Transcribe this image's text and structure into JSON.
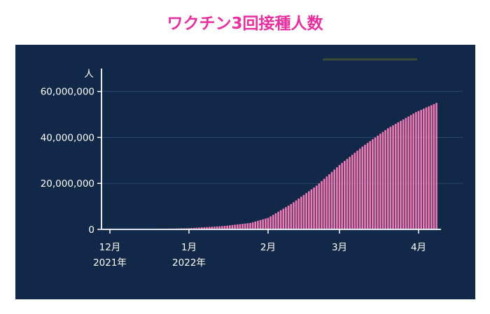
{
  "title": "ワクチン3回接種人数",
  "colors": {
    "title": "#e8309f",
    "panel": "#122848",
    "bar": "#f27ab4",
    "axis": "#ffffff",
    "grid": "#2c4568"
  },
  "chart_data": {
    "type": "bar",
    "title": "ワクチン3回接種人数",
    "ylabel": "人",
    "ylim": [
      0,
      66000000
    ],
    "yticks": [
      0,
      20000000,
      40000000,
      60000000
    ],
    "ytick_labels": [
      "0",
      "20,000,000",
      "40,000,000",
      "60,000,000"
    ],
    "xticks": [
      {
        "month": "12月",
        "year": "2021年",
        "date": "2021-12-01"
      },
      {
        "month": "1月",
        "year": "2022年",
        "date": "2022-01-01"
      },
      {
        "month": "2月",
        "year": "",
        "date": "2022-02-01"
      },
      {
        "month": "3月",
        "year": "",
        "date": "2022-03-01"
      },
      {
        "month": "4月",
        "year": "",
        "date": "2022-04-01"
      }
    ],
    "grid": true,
    "legend": "none",
    "series": [
      {
        "values": [
          [
            "2021-12-01",
            0
          ],
          [
            "2021-12-15",
            100000
          ],
          [
            "2022-01-01",
            500000
          ],
          [
            "2022-01-15",
            1500000
          ],
          [
            "2022-01-25",
            2800000
          ],
          [
            "2022-02-01",
            5000000
          ],
          [
            "2022-02-10",
            11000000
          ],
          [
            "2022-02-20",
            19000000
          ],
          [
            "2022-03-01",
            28000000
          ],
          [
            "2022-03-10",
            36000000
          ],
          [
            "2022-03-20",
            44000000
          ],
          [
            "2022-03-31",
            51000000
          ],
          [
            "2022-04-08",
            55000000
          ]
        ]
      }
    ]
  }
}
